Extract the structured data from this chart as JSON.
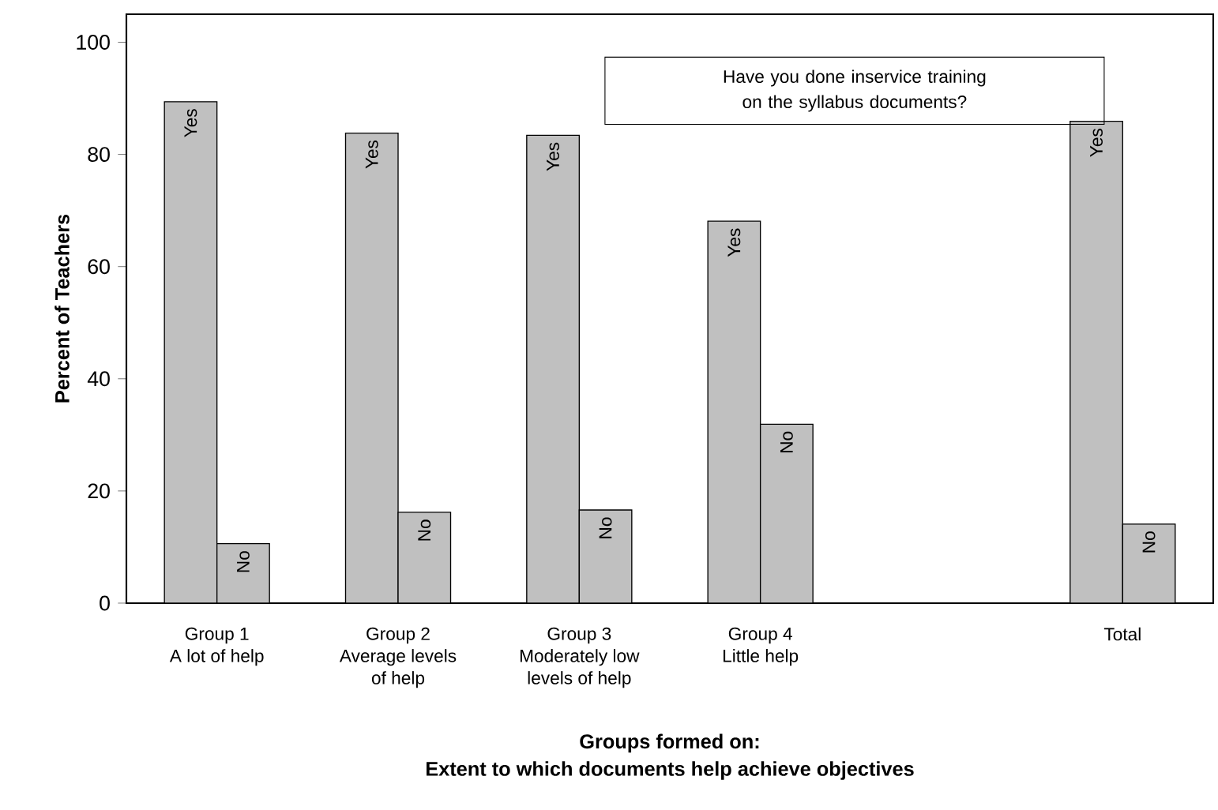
{
  "chart_data": {
    "type": "bar",
    "categories": [
      "Group 1\nA lot of help",
      "Group 2\nAverage levels\nof help",
      "Group 3\nModerately low\nlevels of help",
      "Group 4\nLittle help",
      null,
      "Total"
    ],
    "series": [
      {
        "name": "Yes",
        "color": "#c0c0c0",
        "values": [
          89.4,
          83.8,
          83.4,
          68.1,
          null,
          85.9
        ]
      },
      {
        "name": "No",
        "color": "#c0c0c0",
        "values": [
          10.6,
          16.2,
          16.6,
          31.9,
          null,
          14.1
        ]
      }
    ],
    "xlabel": "Groups formed on:\nExtent to which documents help achieve objectives",
    "ylabel": "Percent of Teachers",
    "ylim": [
      0,
      105
    ],
    "yticks": [
      0,
      20,
      40,
      60,
      80,
      100
    ],
    "annotations": [
      "Have you done inservice training on the syllabus documents?"
    ],
    "grid": false
  }
}
